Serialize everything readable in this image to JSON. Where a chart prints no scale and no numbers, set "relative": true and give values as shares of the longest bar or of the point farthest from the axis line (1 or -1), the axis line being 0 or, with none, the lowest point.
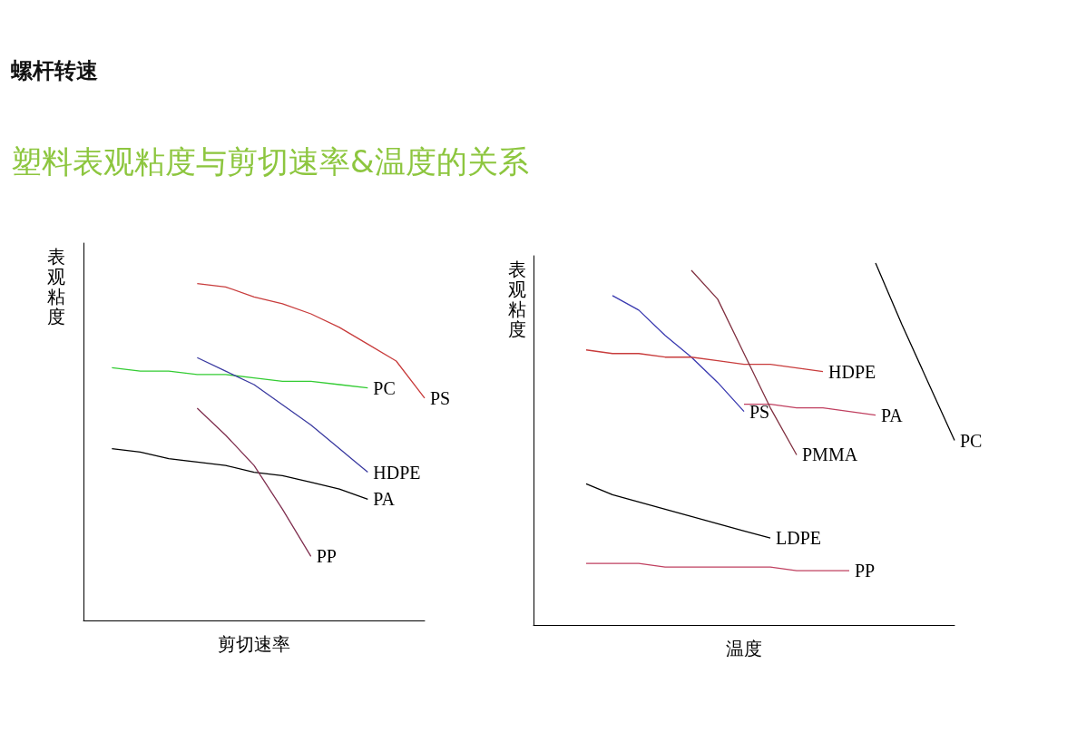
{
  "chart_data": [
    {
      "type": "line",
      "title": "螺杆转速",
      "subtitle": "塑料表观粘度与剪切速率&温度的关系",
      "xlabel": "剪切速率",
      "ylabel": "表观粘度",
      "relative": true,
      "marker": "none",
      "categories": [
        null,
        null,
        null,
        null,
        null,
        null,
        null,
        null,
        null,
        null,
        null,
        null,
        null
      ],
      "series": [
        {
          "name": "PS",
          "color": "#c83c3c",
          "values": [
            null,
            null,
            null,
            null,
            1.0,
            0.99,
            0.96,
            0.94,
            0.91,
            0.87,
            0.82,
            0.77,
            0.66
          ]
        },
        {
          "name": "PC",
          "color": "#33cc33",
          "values": [
            null,
            0.75,
            0.74,
            0.74,
            0.73,
            0.73,
            0.72,
            0.71,
            0.71,
            0.7,
            0.69,
            null,
            null
          ]
        },
        {
          "name": "HDPE",
          "color": "#3a3aa0",
          "values": [
            null,
            null,
            null,
            null,
            0.78,
            0.74,
            0.7,
            0.64,
            0.58,
            0.51,
            0.44,
            null,
            null
          ]
        },
        {
          "name": "PA",
          "color": "#000000",
          "values": [
            null,
            0.51,
            0.5,
            0.48,
            0.47,
            0.46,
            0.44,
            0.43,
            0.41,
            0.39,
            0.36,
            null,
            null
          ]
        },
        {
          "name": "PP",
          "color": "#803050",
          "values": [
            null,
            null,
            null,
            null,
            0.63,
            0.55,
            0.46,
            0.33,
            0.19,
            null,
            null,
            null,
            null
          ]
        }
      ]
    },
    {
      "type": "line",
      "xlabel": "温度",
      "ylabel": "表观粘度",
      "relative": true,
      "marker": "none",
      "categories": [
        null,
        null,
        null,
        null,
        null,
        null,
        null,
        null,
        null,
        null,
        null,
        null,
        null,
        null,
        null,
        null,
        null
      ],
      "series": [
        {
          "name": "PS",
          "color": "#3a3ab0",
          "values": [
            null,
            null,
            null,
            0.91,
            0.87,
            0.8,
            0.74,
            0.67,
            0.59,
            null,
            null,
            null,
            null,
            null,
            null,
            null,
            null
          ]
        },
        {
          "name": "HDPE",
          "color": "#c83c3c",
          "values": [
            null,
            null,
            0.76,
            0.75,
            0.75,
            0.74,
            0.74,
            0.73,
            0.72,
            0.72,
            0.71,
            0.7,
            null,
            null,
            null,
            null,
            null
          ]
        },
        {
          "name": "PA",
          "color": "#c04060",
          "values": [
            null,
            null,
            null,
            null,
            null,
            null,
            null,
            null,
            0.61,
            0.61,
            0.6,
            0.6,
            0.59,
            0.58,
            null,
            null,
            null
          ]
        },
        {
          "name": "PMMA",
          "color": "#803040",
          "values": [
            null,
            null,
            null,
            null,
            null,
            null,
            0.98,
            0.9,
            0.75,
            0.6,
            0.47,
            null,
            null,
            null,
            null,
            null,
            null
          ]
        },
        {
          "name": "PC",
          "color": "#000000",
          "values": [
            null,
            null,
            null,
            null,
            null,
            null,
            null,
            null,
            null,
            null,
            null,
            null,
            null,
            1.0,
            0.83,
            0.67,
            0.51
          ]
        },
        {
          "name": "LDPE",
          "color": "#000000",
          "values": [
            null,
            null,
            0.39,
            0.36,
            0.34,
            0.32,
            0.3,
            0.28,
            0.26,
            0.24,
            null,
            null,
            null,
            null,
            null,
            null,
            null
          ]
        },
        {
          "name": "PP",
          "color": "#c04060",
          "values": [
            null,
            null,
            0.17,
            0.17,
            0.17,
            0.16,
            0.16,
            0.16,
            0.16,
            0.16,
            0.15,
            0.15,
            0.15,
            null,
            null,
            null,
            null
          ]
        }
      ]
    }
  ]
}
